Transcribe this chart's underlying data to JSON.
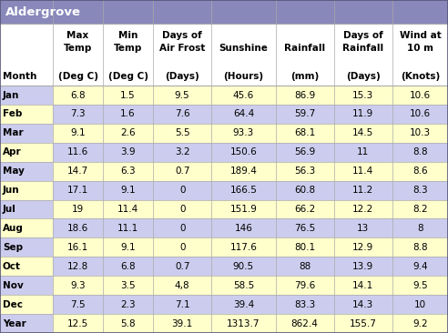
{
  "title": "Aldergrove",
  "title_bg": "#8888bb",
  "title_fg": "#ffffff",
  "col_headers_line1": [
    "",
    "Max",
    "Min",
    "Days of",
    "",
    "",
    "Days of",
    "Wind at"
  ],
  "col_headers_line2": [
    "",
    "Temp",
    "Temp",
    "Air Frost",
    "Sunshine",
    "Rainfall",
    "Rainfall",
    "10 m"
  ],
  "col_units": [
    "Month",
    "(Deg C)",
    "(Deg C)",
    "(Days)",
    "(Hours)",
    "(mm)",
    "(Days)",
    "(Knots)"
  ],
  "months": [
    "Jan",
    "Feb",
    "Mar",
    "Apr",
    "May",
    "Jun",
    "Jul",
    "Aug",
    "Sep",
    "Oct",
    "Nov",
    "Dec",
    "Year"
  ],
  "data": [
    [
      6.8,
      1.5,
      9.5,
      45.6,
      86.9,
      15.3,
      10.6
    ],
    [
      7.3,
      1.6,
      7.6,
      64.4,
      59.7,
      11.9,
      10.6
    ],
    [
      9.1,
      2.6,
      5.5,
      93.3,
      68.1,
      14.5,
      10.3
    ],
    [
      11.6,
      3.9,
      3.2,
      150.6,
      56.9,
      11,
      8.8
    ],
    [
      14.7,
      6.3,
      0.7,
      189.4,
      56.3,
      11.4,
      8.6
    ],
    [
      17.1,
      9.1,
      0,
      166.5,
      60.8,
      11.2,
      8.3
    ],
    [
      19,
      11.4,
      0,
      151.9,
      66.2,
      12.2,
      8.2
    ],
    [
      18.6,
      11.1,
      0,
      146,
      76.5,
      13,
      8
    ],
    [
      16.1,
      9.1,
      0,
      117.6,
      80.1,
      12.9,
      8.8
    ],
    [
      12.8,
      6.8,
      0.7,
      90.5,
      88,
      13.9,
      9.4
    ],
    [
      9.3,
      3.5,
      "4,8",
      58.5,
      79.6,
      14.1,
      9.5
    ],
    [
      7.5,
      2.3,
      7.1,
      39.4,
      83.3,
      14.3,
      10
    ],
    [
      12.5,
      5.8,
      39.1,
      1313.7,
      862.4,
      155.7,
      9.2
    ]
  ],
  "row_bg_alt1": "#ffffcc",
  "row_bg_alt2": "#ccccee",
  "month_col_bg_alt1": "#ccccee",
  "month_col_bg_alt2": "#ffffcc",
  "header_bg": "#ffffff",
  "border_color": "#aaaaaa",
  "outer_border_color": "#555577",
  "text_color": "#000000",
  "font_size": 7.5,
  "header_font_size": 7.5,
  "title_font_size": 9.5
}
